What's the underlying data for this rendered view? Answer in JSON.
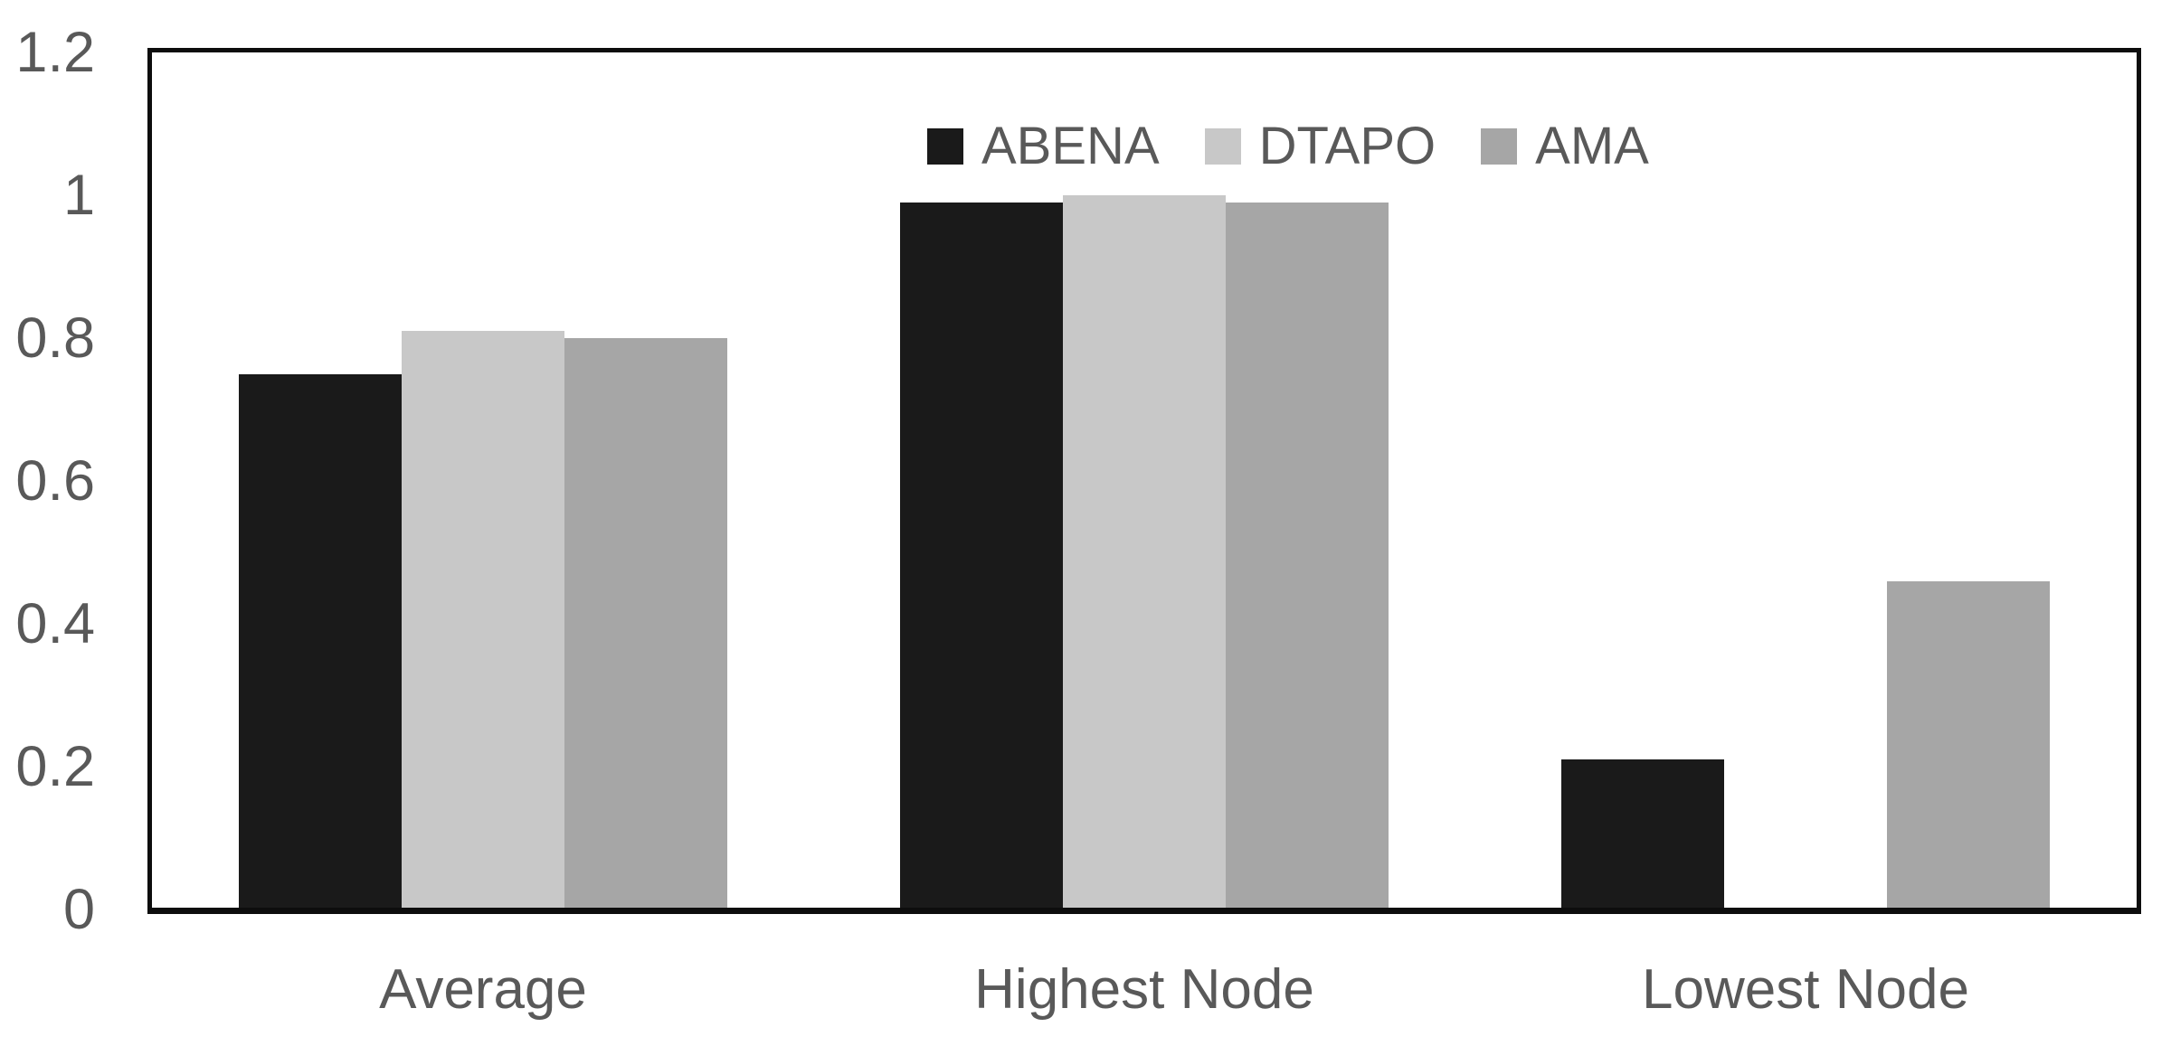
{
  "chart_data": {
    "type": "bar",
    "title": "",
    "xlabel": "",
    "ylabel": "",
    "categories": [
      "Average",
      "Highest Node",
      "Lowest Node"
    ],
    "series": [
      {
        "name": "ABENA",
        "color": "#1a1a1a",
        "values": [
          0.75,
          0.99,
          0.21
        ]
      },
      {
        "name": "DTAPO",
        "color": "#c8c8c8",
        "values": [
          0.81,
          1.0,
          null
        ]
      },
      {
        "name": "AMA",
        "color": "#a6a6a6",
        "values": [
          0.8,
          0.99,
          0.46
        ]
      }
    ],
    "ylim": [
      0,
      1.2
    ],
    "yticks": [
      0,
      0.2,
      0.4,
      0.6,
      0.8,
      1,
      1.2
    ],
    "ytick_labels": [
      "0",
      "0.2",
      "0.4",
      "0.6",
      "0.8",
      "1",
      "1.2"
    ],
    "grid": false,
    "legend_position": "top-center-inside",
    "colors": {
      "axis_text": "#595959",
      "plot_border": "#0d0d0d",
      "background": "#ffffff"
    }
  }
}
